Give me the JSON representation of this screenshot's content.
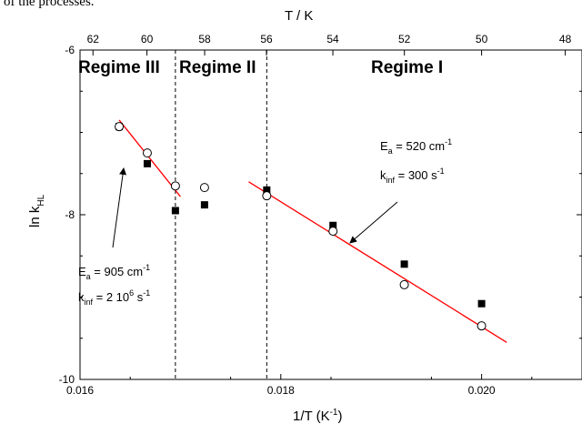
{
  "caption_fragment": "of the processes.",
  "chart_data": {
    "type": "scatter",
    "xlabel": "1/T (K",
    "xlabel_sup": "-1",
    "xlabel_end": ")",
    "top_xlabel": "T / K",
    "ylabel_main": "ln k",
    "ylabel_sub": "HL",
    "xlim": [
      0.016,
      0.021
    ],
    "ylim": [
      -10,
      -6
    ],
    "xticks": [
      0.016,
      0.018,
      0.02
    ],
    "xtick_labels": [
      "0.016",
      "0.018",
      "0.020"
    ],
    "yticks": [
      -10,
      -8,
      -6
    ],
    "ytick_labels": [
      "-10",
      "-8",
      "-6"
    ],
    "top_ticks_T": [
      62,
      60,
      58,
      56,
      54,
      52,
      50,
      48
    ],
    "top_tick_labels": [
      "62",
      "60",
      "58",
      "56",
      "54",
      "52",
      "50",
      "48"
    ],
    "grid": false,
    "series": [
      {
        "marker": "filled-square",
        "color": "#000000",
        "x": [
          0.01639,
          0.01667,
          0.01695,
          0.01724,
          0.01786,
          0.01852,
          0.01923,
          0.02
        ],
        "y": [
          -6.93,
          -7.38,
          -7.95,
          -7.88,
          -7.7,
          -8.13,
          -8.6,
          -9.08
        ]
      },
      {
        "marker": "open-circle",
        "color": "#000000",
        "x": [
          0.01639,
          0.01667,
          0.01695,
          0.01724,
          0.01786,
          0.01852,
          0.01923,
          0.02
        ],
        "y": [
          -6.93,
          -7.25,
          -7.65,
          -7.67,
          -7.77,
          -8.2,
          -8.85,
          -9.35
        ]
      },
      {
        "marker": "line",
        "color": "#ff0000",
        "x": [
          0.01639,
          0.017
        ],
        "y": [
          -6.85,
          -7.78
        ]
      },
      {
        "marker": "line",
        "color": "#ff0000",
        "x": [
          0.01768,
          0.02025
        ],
        "y": [
          -7.6,
          -9.55
        ]
      }
    ],
    "regime_dividers_x": [
      0.01695,
      0.01786
    ],
    "regime_labels": [
      "Regime III",
      "Regime II",
      "Regime I"
    ],
    "annotations": [
      {
        "main": "E",
        "sub": "a",
        "rest": " = 520 cm",
        "sup": "-1"
      },
      {
        "main": "k",
        "sub": "inf",
        "rest": " = 300 s",
        "sup": "-1"
      },
      {
        "main": "E",
        "sub": "a",
        "rest": " = 905 cm",
        "sup": "-1"
      },
      {
        "main": "k",
        "sub": "inf",
        "rest": " = 2 10",
        "sup": "6",
        "rest2": " s",
        "sup2": "-1"
      }
    ],
    "colors": {
      "fit_line": "#ff0000",
      "markers": "#000000"
    }
  }
}
